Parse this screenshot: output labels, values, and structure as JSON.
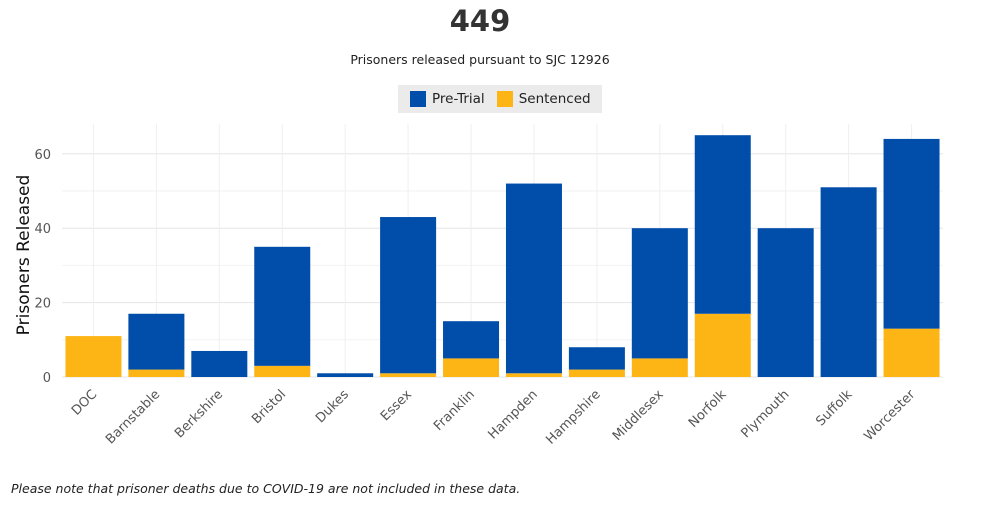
{
  "headline": "449",
  "chart_data": {
    "type": "bar",
    "stacked": true,
    "title": "Prisoners released pursuant to SJC 12926",
    "ylabel": "Prisoners Released",
    "xlabel": "",
    "ylim": [
      0,
      68
    ],
    "yticks": [
      0,
      20,
      40,
      60
    ],
    "grid": true,
    "legend_position": "top",
    "categories": [
      "DOC",
      "Barnstable",
      "Berkshire",
      "Bristol",
      "Dukes",
      "Essex",
      "Franklin",
      "Hampden",
      "Hampshire",
      "Middlesex",
      "Norfolk",
      "Plymouth",
      "Suffolk",
      "Worcester"
    ],
    "series": [
      {
        "name": "Sentenced",
        "color": "#FDB515",
        "values": [
          11,
          2,
          0,
          3,
          0,
          1,
          5,
          1,
          2,
          5,
          17,
          0,
          0,
          13
        ]
      },
      {
        "name": "Pre-Trial",
        "color": "#004DAA",
        "values": [
          0,
          15,
          7,
          32,
          1,
          42,
          10,
          51,
          6,
          35,
          48,
          40,
          51,
          51
        ]
      }
    ]
  },
  "legend": {
    "pretrial_label": "Pre-Trial",
    "sentenced_label": "Sentenced"
  },
  "footnote": "Please note that prisoner deaths due to COVID-19 are not included in these data."
}
